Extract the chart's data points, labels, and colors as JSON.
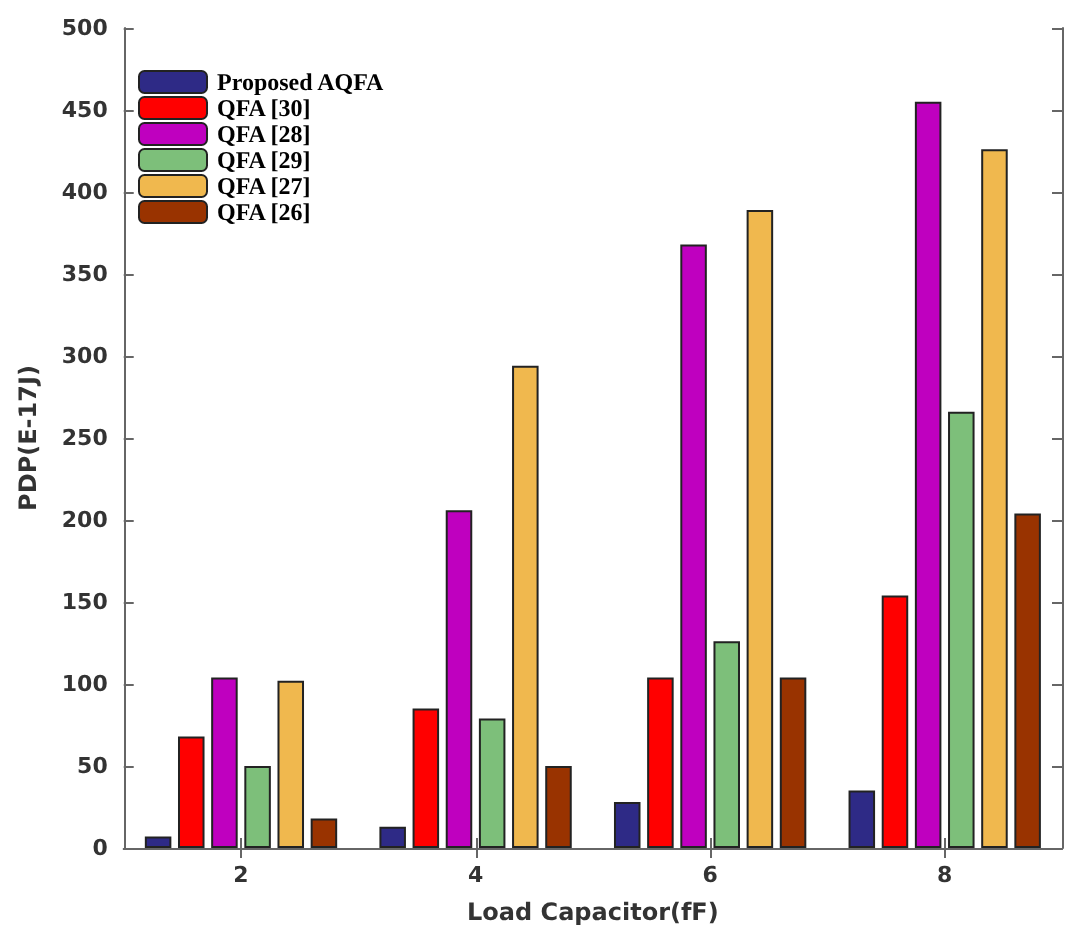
{
  "chart_data": {
    "type": "bar",
    "xlabel": "Load Capacitor(fF)",
    "ylabel": "PDP(E-17J)",
    "categories": [
      "2",
      "4",
      "6",
      "8"
    ],
    "series": [
      {
        "name": "Proposed AQFA",
        "color": "#2e2a86",
        "values": [
          7,
          13,
          28,
          35
        ]
      },
      {
        "name": "QFA [30]",
        "color": "#ff0000",
        "values": [
          68,
          85,
          104,
          154
        ]
      },
      {
        "name": "QFA [28]",
        "color": "#bf00bf",
        "values": [
          104,
          206,
          368,
          455
        ]
      },
      {
        "name": "QFA [29]",
        "color": "#7dbf7a",
        "values": [
          50,
          79,
          126,
          266
        ]
      },
      {
        "name": "QFA [27]",
        "color": "#f0b84e",
        "values": [
          102,
          294,
          389,
          426
        ]
      },
      {
        "name": "QFA [26]",
        "color": "#993300",
        "values": [
          18,
          50,
          104,
          204
        ]
      }
    ],
    "ylim": [
      0,
      500
    ],
    "yticks": [
      0,
      50,
      100,
      150,
      200,
      250,
      300,
      350,
      400,
      450,
      500
    ],
    "grid": false,
    "legend": "top left"
  }
}
